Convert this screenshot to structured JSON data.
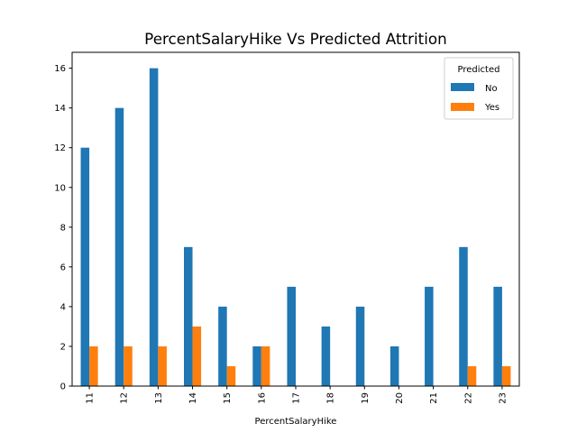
{
  "chart_data": {
    "type": "bar",
    "title": "PercentSalaryHike  Vs Predicted Attrition",
    "xlabel": "PercentSalaryHike",
    "ylabel": "",
    "categories": [
      "11",
      "12",
      "13",
      "14",
      "15",
      "16",
      "17",
      "18",
      "19",
      "20",
      "21",
      "22",
      "23"
    ],
    "series": [
      {
        "name": "No",
        "color": "#1f77b4",
        "values": [
          12,
          14,
          16,
          7,
          4,
          2,
          5,
          3,
          4,
          2,
          5,
          7,
          5
        ]
      },
      {
        "name": "Yes",
        "color": "#ff7f0e",
        "values": [
          2,
          2,
          2,
          3,
          1,
          2,
          0,
          0,
          0,
          0,
          0,
          1,
          1
        ]
      }
    ],
    "ylim": [
      0,
      16.8
    ],
    "yticks": [
      0,
      2,
      4,
      6,
      8,
      10,
      12,
      14,
      16
    ],
    "legend": {
      "title": "Predicted",
      "placement": "top-right"
    },
    "grid": false
  }
}
